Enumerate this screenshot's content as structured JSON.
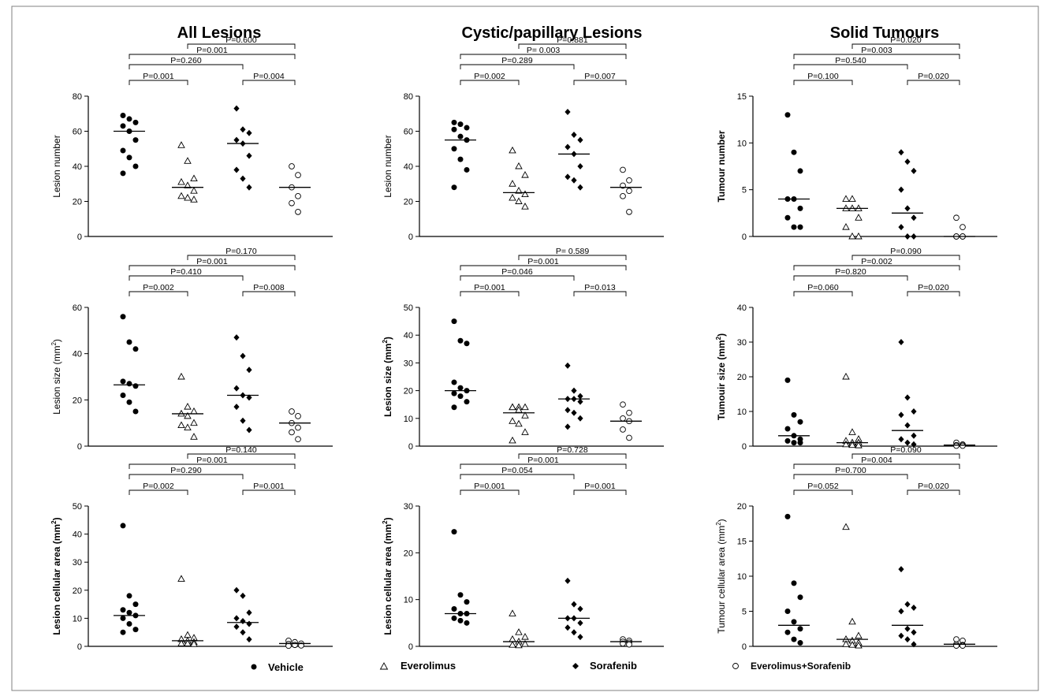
{
  "column_titles": [
    "All Lesions",
    "Cystic/papillary Lesions",
    "Solid Tumours"
  ],
  "legend": [
    {
      "label": "Vehicle",
      "marker": "filled-circle"
    },
    {
      "label": "Everolimus",
      "marker": "open-triangle"
    },
    {
      "label": "Sorafenib",
      "marker": "filled-diamond"
    },
    {
      "label": "Everolimus+Sorafenib",
      "marker": "open-circle"
    }
  ],
  "chart_data": [
    {
      "type": "scatter",
      "column": 0,
      "row": 0,
      "title": "All Lesions",
      "ylabel": "Lesion number",
      "ylabel_sup": "",
      "ylabel_bold": false,
      "ylim": [
        0,
        80
      ],
      "yticks": [
        "0",
        "20",
        "40",
        "60",
        "80"
      ],
      "groups": [
        "Vehicle",
        "Everolimus",
        "Sorafenib",
        "Everolimus+Sorafenib"
      ],
      "points": [
        [
          69,
          67,
          65,
          63,
          60,
          55,
          49,
          45,
          40,
          36
        ],
        [
          52,
          43,
          33,
          31,
          29,
          26,
          23,
          22,
          21
        ],
        [
          73,
          61,
          59,
          55,
          53,
          46,
          38,
          33,
          28
        ],
        [
          40,
          35,
          28,
          23,
          19,
          14
        ]
      ],
      "medians": [
        60,
        28,
        53,
        28
      ],
      "comparisons": [
        {
          "label": "P=0.001",
          "from": 0,
          "to": 1
        },
        {
          "label": "P=0.004",
          "from": 2,
          "to": 3
        },
        {
          "label": "P=0.260",
          "from": 0,
          "to": 2
        },
        {
          "label": "P=0.001",
          "from": 0,
          "to": 3
        },
        {
          "label": "P=0.600",
          "from": 1,
          "to": 3
        }
      ]
    },
    {
      "type": "scatter",
      "column": 1,
      "row": 0,
      "title": "Cystic/papillary Lesions",
      "ylabel": "Lesion number",
      "ylabel_sup": "",
      "ylabel_bold": false,
      "ylim": [
        0,
        80
      ],
      "yticks": [
        "0",
        "20",
        "40",
        "60",
        "80"
      ],
      "groups": [
        "Vehicle",
        "Everolimus",
        "Sorafenib",
        "Everolimus+Sorafenib"
      ],
      "points": [
        [
          65,
          64,
          62,
          61,
          57,
          55,
          50,
          44,
          38,
          28
        ],
        [
          49,
          40,
          35,
          30,
          26,
          24,
          22,
          20,
          17
        ],
        [
          71,
          58,
          55,
          51,
          47,
          40,
          34,
          32,
          28
        ],
        [
          38,
          32,
          29,
          26,
          23,
          14
        ]
      ],
      "medians": [
        55,
        25,
        47,
        28
      ],
      "comparisons": [
        {
          "label": "P=0.002",
          "from": 0,
          "to": 1
        },
        {
          "label": "P=0.007",
          "from": 2,
          "to": 3
        },
        {
          "label": "P=0.289",
          "from": 0,
          "to": 2
        },
        {
          "label": "P= 0.003",
          "from": 0,
          "to": 3
        },
        {
          "label": "P=0.881",
          "from": 1,
          "to": 3
        }
      ]
    },
    {
      "type": "scatter",
      "column": 2,
      "row": 0,
      "title": "Solid Tumours",
      "ylabel": "Tumour number",
      "ylabel_sup": "",
      "ylabel_bold": true,
      "ylim": [
        0,
        15
      ],
      "yticks": [
        "0",
        "5",
        "10",
        "15"
      ],
      "groups": [
        "Vehicle",
        "Everolimus",
        "Sorafenib",
        "Everolimus+Sorafenib"
      ],
      "points": [
        [
          13,
          9,
          7,
          4,
          4,
          3,
          2,
          1,
          1
        ],
        [
          4,
          4,
          3,
          3,
          3,
          2,
          1,
          0,
          0
        ],
        [
          9,
          8,
          7,
          5,
          3,
          2,
          1,
          0,
          0
        ],
        [
          2,
          1,
          0,
          0,
          0,
          0
        ]
      ],
      "medians": [
        4,
        3,
        2.5,
        0
      ],
      "comparisons": [
        {
          "label": "P=0.100",
          "from": 0,
          "to": 1
        },
        {
          "label": "P=0.020",
          "from": 2,
          "to": 3
        },
        {
          "label": "P=0.540",
          "from": 0,
          "to": 2
        },
        {
          "label": "P=0.003",
          "from": 0,
          "to": 3
        },
        {
          "label": "P=0.020",
          "from": 1,
          "to": 3
        }
      ]
    },
    {
      "type": "scatter",
      "column": 0,
      "row": 1,
      "title": "",
      "ylabel": "Lesion size (mm",
      "ylabel_sup": "2",
      "ylabel_tail": ")",
      "ylabel_bold": false,
      "ylim": [
        0,
        60
      ],
      "yticks": [
        "0",
        "20",
        "40",
        "60"
      ],
      "groups": [
        "Vehicle",
        "Everolimus",
        "Sorafenib",
        "Everolimus+Sorafenib"
      ],
      "points": [
        [
          56,
          45,
          42,
          28,
          27,
          26,
          22,
          19,
          15
        ],
        [
          30,
          17,
          15,
          14,
          13,
          10,
          9,
          8,
          4
        ],
        [
          47,
          39,
          33,
          25,
          22,
          21,
          17,
          11,
          7
        ],
        [
          15,
          13,
          10,
          8,
          6,
          3
        ]
      ],
      "medians": [
        26.5,
        14,
        22,
        10
      ],
      "comparisons": [
        {
          "label": "P=0.002",
          "from": 0,
          "to": 1
        },
        {
          "label": "P=0.008",
          "from": 2,
          "to": 3
        },
        {
          "label": "P=0.410",
          "from": 0,
          "to": 2
        },
        {
          "label": "P=0.001",
          "from": 0,
          "to": 3
        },
        {
          "label": "P=0.170",
          "from": 1,
          "to": 3
        }
      ]
    },
    {
      "type": "scatter",
      "column": 1,
      "row": 1,
      "title": "",
      "ylabel": "Lesion size (mm",
      "ylabel_sup": "2",
      "ylabel_tail": ")",
      "ylabel_bold": true,
      "ylim": [
        0,
        50
      ],
      "yticks": [
        "0",
        "10",
        "20",
        "30",
        "40",
        "50"
      ],
      "groups": [
        "Vehicle",
        "Everolimus",
        "Sorafenib",
        "Everolimus+Sorafenib"
      ],
      "points": [
        [
          45,
          38,
          37,
          23,
          21,
          20,
          19,
          18,
          16,
          14
        ],
        [
          14,
          14,
          14,
          14,
          13,
          11,
          9,
          8,
          5,
          2
        ],
        [
          29,
          20,
          18,
          17,
          17,
          16,
          13,
          12,
          10,
          7
        ],
        [
          15,
          12,
          10,
          9,
          6,
          3
        ]
      ],
      "medians": [
        20,
        12,
        17,
        9
      ],
      "comparisons": [
        {
          "label": "P=0.001",
          "from": 0,
          "to": 1
        },
        {
          "label": "P=0.013",
          "from": 2,
          "to": 3
        },
        {
          "label": "P=0.046",
          "from": 0,
          "to": 2
        },
        {
          "label": "P=0.001",
          "from": 0,
          "to": 3
        },
        {
          "label": "P= 0.589",
          "from": 1,
          "to": 3
        }
      ]
    },
    {
      "type": "scatter",
      "column": 2,
      "row": 1,
      "title": "",
      "ylabel": "Tumouir size (mm",
      "ylabel_sup": "2",
      "ylabel_tail": ")",
      "ylabel_bold": true,
      "ylim": [
        0,
        40
      ],
      "yticks": [
        "0",
        "10",
        "20",
        "30",
        "40"
      ],
      "groups": [
        "Vehicle",
        "Everolimus",
        "Sorafenib",
        "Everolimus+Sorafenib"
      ],
      "points": [
        [
          19,
          9,
          7,
          5,
          3,
          2,
          1.5,
          1,
          1
        ],
        [
          20,
          4,
          2,
          1.5,
          1,
          1,
          0.5,
          0.3,
          0.2
        ],
        [
          30,
          14,
          10,
          9,
          6,
          3,
          2,
          1,
          0.5
        ],
        [
          1,
          0.5,
          0.3,
          0.2,
          0.1,
          0.1
        ]
      ],
      "medians": [
        3,
        1,
        4.5,
        0.3
      ],
      "comparisons": [
        {
          "label": "P=0.060",
          "from": 0,
          "to": 1
        },
        {
          "label": "P=0.020",
          "from": 2,
          "to": 3
        },
        {
          "label": "P=0.820",
          "from": 0,
          "to": 2
        },
        {
          "label": "P=0.002",
          "from": 0,
          "to": 3
        },
        {
          "label": "P=0.090",
          "from": 1,
          "to": 3
        }
      ]
    },
    {
      "type": "scatter",
      "column": 0,
      "row": 2,
      "title": "",
      "ylabel": "Lesion cellular area (mm",
      "ylabel_sup": "2",
      "ylabel_tail": ")",
      "ylabel_bold": true,
      "ylim": [
        0,
        50
      ],
      "yticks": [
        "0",
        "10",
        "20",
        "30",
        "40",
        "50"
      ],
      "groups": [
        "Vehicle",
        "Everolimus",
        "Sorafenib",
        "Everolimus+Sorafenib"
      ],
      "points": [
        [
          43,
          18,
          15,
          13,
          12,
          11,
          10,
          8,
          6,
          5
        ],
        [
          24,
          4,
          3,
          2.5,
          2,
          1.5,
          1,
          1,
          0.8
        ],
        [
          20,
          18,
          12,
          10,
          9,
          8,
          7,
          5,
          2.5
        ],
        [
          2,
          1.5,
          1,
          0.8,
          0.5,
          0.3,
          0.2
        ]
      ],
      "medians": [
        11,
        2,
        8.5,
        1
      ],
      "comparisons": [
        {
          "label": "P=0.002",
          "from": 0,
          "to": 1
        },
        {
          "label": "P=0.001",
          "from": 2,
          "to": 3
        },
        {
          "label": "P=0.290",
          "from": 0,
          "to": 2
        },
        {
          "label": "P=0.001",
          "from": 0,
          "to": 3
        },
        {
          "label": "P=0.140",
          "from": 1,
          "to": 3
        }
      ]
    },
    {
      "type": "scatter",
      "column": 1,
      "row": 2,
      "title": "",
      "ylabel": "Lesion cellular area (mm",
      "ylabel_sup": "2",
      "ylabel_tail": ")",
      "ylabel_bold": true,
      "ylim": [
        0,
        30
      ],
      "yticks": [
        "0",
        "10",
        "20",
        "30"
      ],
      "groups": [
        "Vehicle",
        "Everolimus",
        "Sorafenib",
        "Everolimus+Sorafenib"
      ],
      "points": [
        [
          24.5,
          11,
          9.5,
          8,
          7,
          7,
          6,
          5.5,
          5
        ],
        [
          7,
          3,
          2,
          1.5,
          1,
          0.5,
          0.3,
          0.2
        ],
        [
          14,
          9,
          8,
          6,
          6,
          5,
          4,
          3,
          2
        ],
        [
          1.5,
          1.2,
          1,
          0.8,
          0.6,
          0.4
        ]
      ],
      "medians": [
        7,
        1,
        6,
        1
      ],
      "comparisons": [
        {
          "label": "P=0.001",
          "from": 0,
          "to": 1
        },
        {
          "label": "P=0.001",
          "from": 2,
          "to": 3
        },
        {
          "label": "P=0.054",
          "from": 0,
          "to": 2
        },
        {
          "label": "P=0.001",
          "from": 0,
          "to": 3
        },
        {
          "label": "P=0.728",
          "from": 1,
          "to": 3
        }
      ]
    },
    {
      "type": "scatter",
      "column": 2,
      "row": 2,
      "title": "",
      "ylabel": "Tumour cellular area (mm",
      "ylabel_sup": "2",
      "ylabel_tail": ")",
      "ylabel_bold": false,
      "ylim": [
        0,
        20
      ],
      "yticks": [
        "0",
        "5",
        "10",
        "15",
        "20"
      ],
      "groups": [
        "Vehicle",
        "Everolimus",
        "Sorafenib",
        "Everolimus+Sorafenib"
      ],
      "points": [
        [
          18.5,
          9,
          7,
          5,
          3.5,
          2.5,
          2,
          1,
          0.5
        ],
        [
          17,
          3.5,
          1.5,
          1,
          0.8,
          0.5,
          0.3,
          0.2,
          0.1
        ],
        [
          11,
          6,
          5.5,
          5,
          2.5,
          2,
          1.5,
          1,
          0.3
        ],
        [
          1,
          0.8,
          0.3,
          0.2,
          0.1,
          0.1
        ]
      ],
      "medians": [
        3,
        1,
        3,
        0.3
      ],
      "comparisons": [
        {
          "label": "P=0.052",
          "from": 0,
          "to": 1
        },
        {
          "label": "P=0.020",
          "from": 2,
          "to": 3
        },
        {
          "label": "P=0.700",
          "from": 0,
          "to": 2
        },
        {
          "label": "P=0.004",
          "from": 0,
          "to": 3
        },
        {
          "label": "P=0.090",
          "from": 1,
          "to": 3
        }
      ]
    }
  ]
}
